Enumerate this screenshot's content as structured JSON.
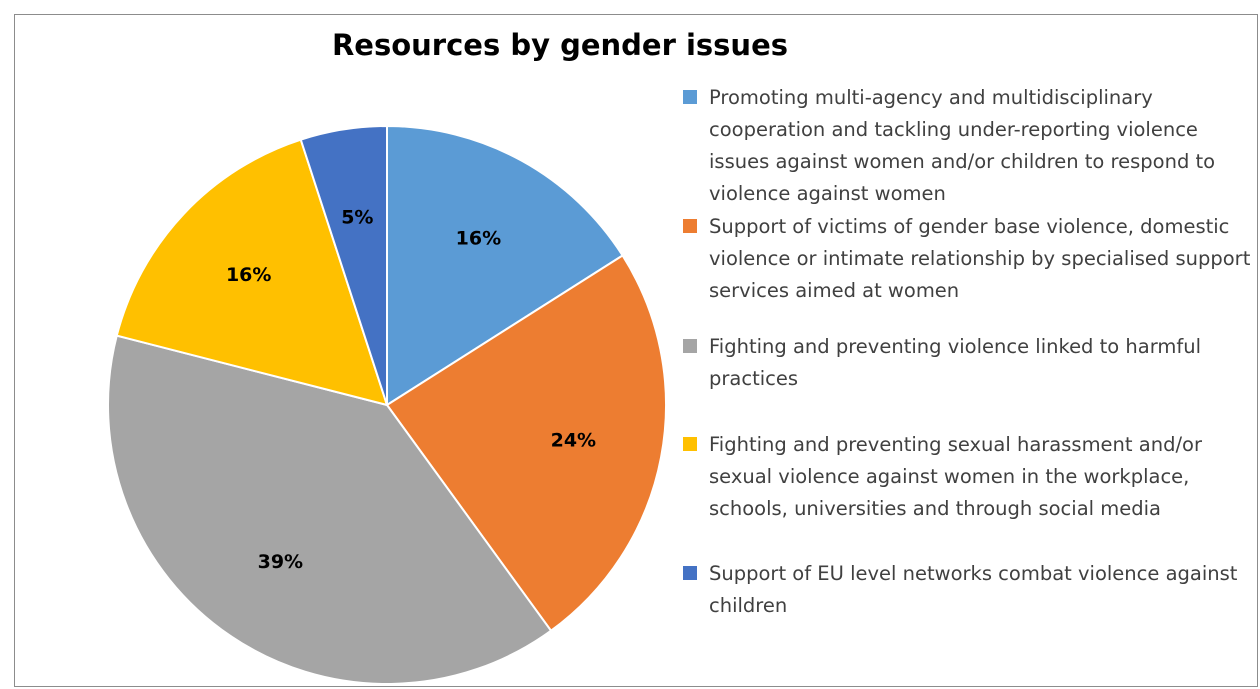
{
  "chart_data": {
    "type": "pie",
    "title": "Resources by gender issues",
    "legend_position": "right",
    "series": [
      {
        "name": "Promoting multi-agency and multidisciplinary cooperation and tackling under-reporting violence issues against women and/or children to respond to violence against women",
        "value": 16,
        "label": "16%",
        "color": "#5b9bd5"
      },
      {
        "name": "Support of victims of gender base violence, domestic violence or intimate relationship by specialised support services aimed at women",
        "value": 24,
        "label": "24%",
        "color": "#ed7d31"
      },
      {
        "name": "Fighting and preventing violence linked to harmful practices",
        "value": 39,
        "label": "39%",
        "color": "#a5a5a5"
      },
      {
        "name": "Fighting and preventing sexual harassment and/or sexual violence against women in the workplace, schools, universities and through social media",
        "value": 16,
        "label": "16%",
        "color": "#ffc000"
      },
      {
        "name": "Support of EU level networks  combat violence against children",
        "value": 5,
        "label": "5%",
        "color": "#4472c4"
      }
    ]
  }
}
